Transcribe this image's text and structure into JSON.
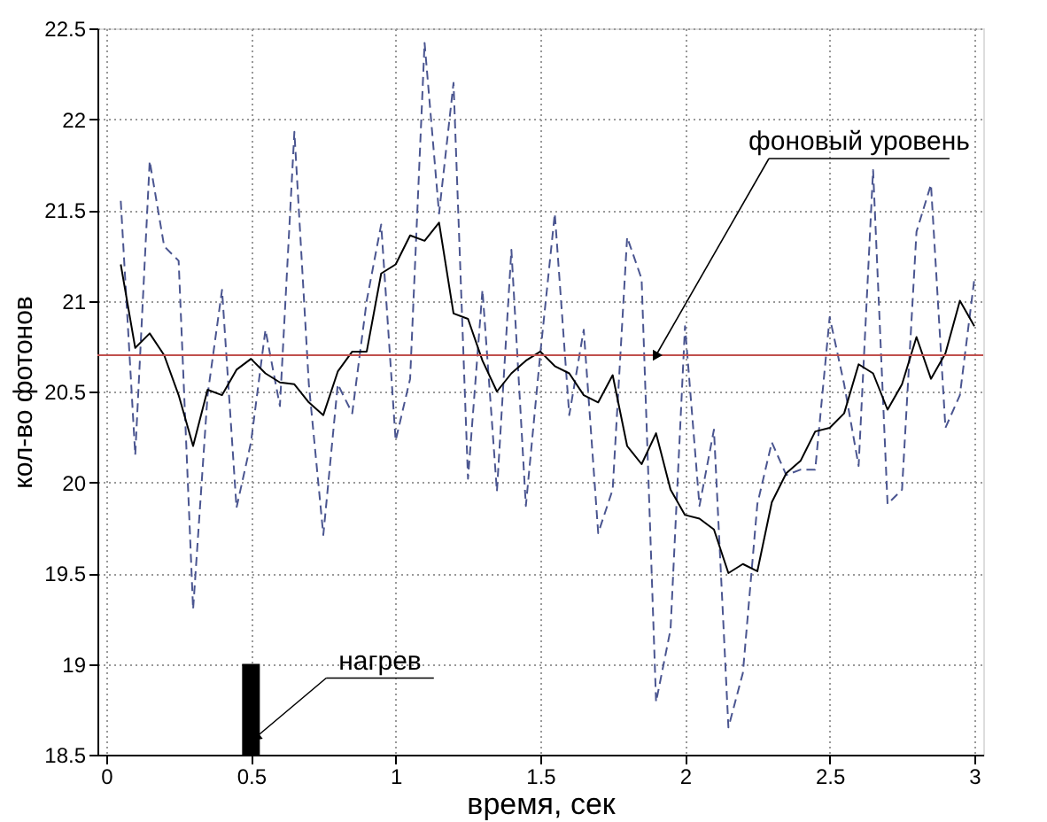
{
  "chart_data": {
    "type": "line",
    "xlabel": "время, сек",
    "ylabel": "кол-во фотонов",
    "xlim": [
      0,
      3
    ],
    "ylim": [
      18.5,
      22.5
    ],
    "xticks": [
      0,
      0.5,
      1,
      1.5,
      2,
      2.5,
      3
    ],
    "yticks": [
      18.5,
      19,
      19.5,
      20,
      20.5,
      21,
      21.5,
      22,
      22.5
    ],
    "grid": true,
    "series": [
      {
        "line_style": "dashed",
        "color": "#4a5590",
        "x": [
          0.05,
          0.1,
          0.15,
          0.2,
          0.25,
          0.3,
          0.35,
          0.4,
          0.45,
          0.5,
          0.55,
          0.6,
          0.65,
          0.7,
          0.75,
          0.8,
          0.85,
          0.9,
          0.95,
          1.0,
          1.05,
          1.1,
          1.15,
          1.2,
          1.25,
          1.3,
          1.35,
          1.4,
          1.45,
          1.5,
          1.55,
          1.6,
          1.65,
          1.7,
          1.75,
          1.8,
          1.85,
          1.9,
          1.95,
          2.0,
          2.05,
          2.1,
          2.15,
          2.2,
          2.25,
          2.3,
          2.35,
          2.4,
          2.45,
          2.5,
          2.55,
          2.6,
          2.65,
          2.7,
          2.75,
          2.8,
          2.85,
          2.9,
          2.95,
          3.0
        ],
        "values": [
          21.55,
          20.15,
          21.77,
          21.3,
          21.22,
          19.3,
          20.48,
          21.06,
          19.86,
          20.22,
          20.84,
          20.42,
          21.93,
          20.54,
          19.71,
          20.54,
          20.38,
          21.0,
          21.42,
          20.23,
          20.57,
          22.42,
          21.48,
          22.2,
          20.02,
          21.06,
          19.95,
          21.28,
          19.87,
          20.71,
          21.48,
          20.37,
          20.84,
          19.72,
          19.96,
          21.35,
          21.12,
          18.79,
          19.19,
          20.86,
          19.87,
          20.29,
          18.65,
          18.95,
          19.88,
          20.22,
          20.04,
          20.07,
          20.07,
          20.91,
          20.54,
          20.09,
          21.72,
          19.88,
          19.96,
          21.38,
          21.64,
          20.3,
          20.48,
          21.12
        ]
      },
      {
        "line_style": "solid",
        "color": "#000000",
        "x": [
          0.05,
          0.1,
          0.15,
          0.2,
          0.25,
          0.3,
          0.35,
          0.4,
          0.45,
          0.5,
          0.55,
          0.6,
          0.65,
          0.7,
          0.75,
          0.8,
          0.85,
          0.9,
          0.95,
          1.0,
          1.05,
          1.1,
          1.15,
          1.2,
          1.25,
          1.3,
          1.35,
          1.4,
          1.45,
          1.5,
          1.55,
          1.6,
          1.65,
          1.7,
          1.75,
          1.8,
          1.85,
          1.9,
          1.95,
          2.0,
          2.05,
          2.1,
          2.15,
          2.2,
          2.25,
          2.3,
          2.35,
          2.4,
          2.45,
          2.5,
          2.55,
          2.6,
          2.65,
          2.7,
          2.75,
          2.8,
          2.85,
          2.9,
          2.95,
          3.0
        ],
        "values": [
          21.2,
          20.74,
          20.82,
          20.7,
          20.48,
          20.2,
          20.51,
          20.48,
          20.62,
          20.68,
          20.6,
          20.55,
          20.54,
          20.44,
          20.37,
          20.61,
          20.72,
          20.72,
          21.15,
          21.2,
          21.36,
          21.33,
          21.43,
          20.93,
          20.9,
          20.67,
          20.5,
          20.6,
          20.67,
          20.72,
          20.64,
          20.6,
          20.48,
          20.44,
          20.59,
          20.2,
          20.1,
          20.27,
          19.96,
          19.82,
          19.8,
          19.74,
          19.5,
          19.55,
          19.51,
          19.89,
          20.05,
          20.12,
          20.28,
          20.3,
          20.38,
          20.65,
          20.6,
          20.4,
          20.54,
          20.8,
          20.57,
          20.71,
          21.0,
          20.86
        ]
      },
      {
        "type": "bar",
        "color": "#000000",
        "x": [
          0.5
        ],
        "base": [
          18.5
        ],
        "values": [
          0.5
        ]
      }
    ],
    "ref_lines": [
      {
        "axis": "y",
        "value": 20.7,
        "color": "#c0504d"
      }
    ],
    "annotations": [
      {
        "text": "нагрев",
        "x": 0.52,
        "y": 18.6
      },
      {
        "text": "фоновый уровень",
        "x": 1.9,
        "y": 20.7
      }
    ]
  }
}
